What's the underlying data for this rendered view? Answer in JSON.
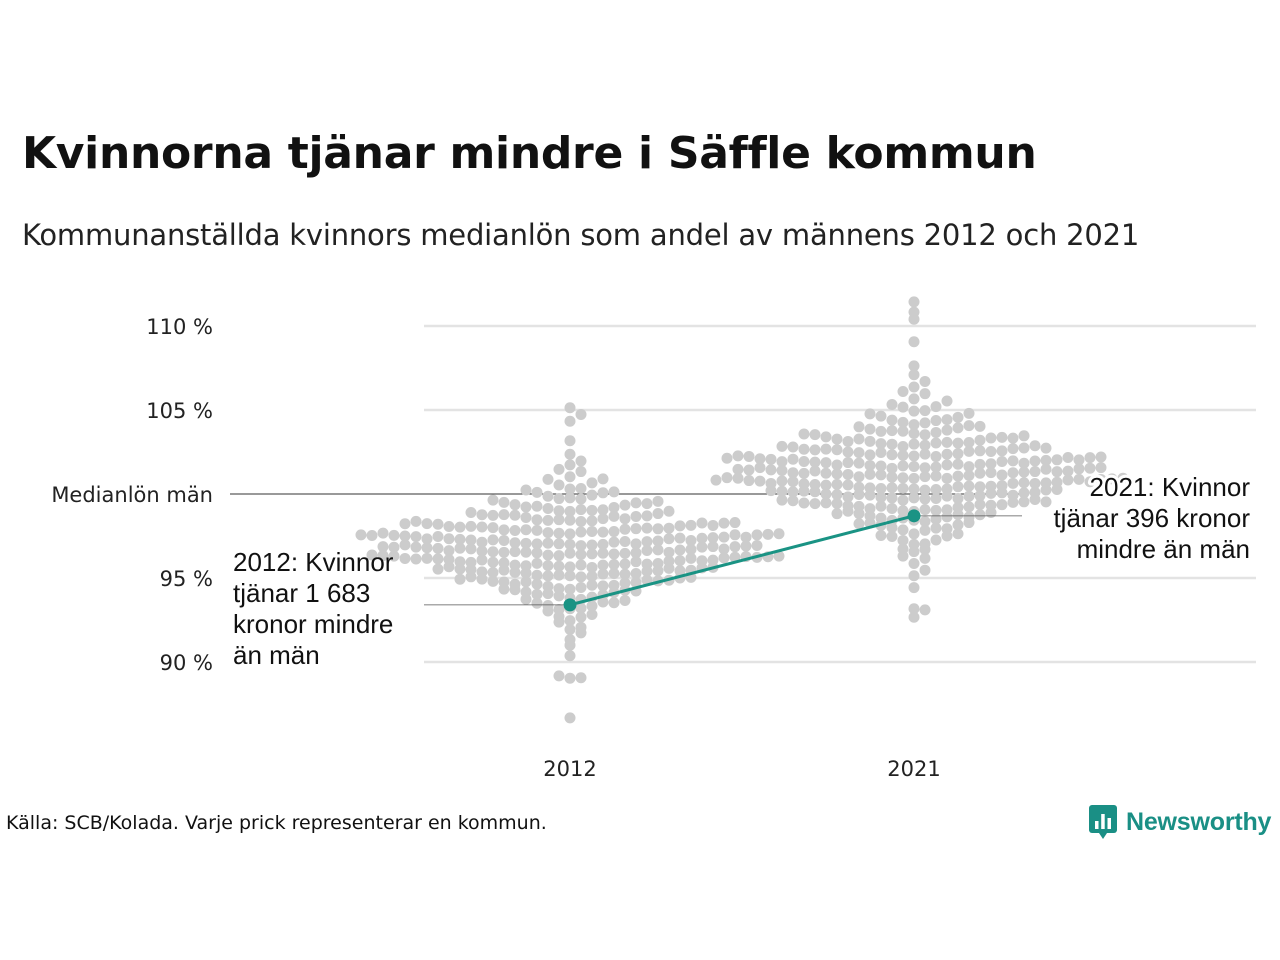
{
  "title": "Kvinnorna tjänar mindre i Säffle kommun",
  "subtitle": "Kommunanställda kvinnors medianlön som andel av männens 2012 och 2021",
  "source": "Källa: SCB/Kolada. Varje prick representerar en kommun.",
  "brand": {
    "name": "Newsworthy",
    "icon": "bar-chart-speech-bubble-icon",
    "color": "#1a8f85"
  },
  "colors": {
    "dots": "#cccccc",
    "highlight": "#1a9384",
    "grid": "#e3e3e3",
    "reference": "#333333"
  },
  "chart_data": {
    "type": "scatter",
    "subtype": "beeswarm",
    "categories": [
      "2012",
      "2021"
    ],
    "y_unit": "%",
    "ylim": [
      86,
      111.5
    ],
    "y_ticks": [
      {
        "value": 90,
        "label": "90 %"
      },
      {
        "value": 95,
        "label": "95 %"
      },
      {
        "value": 100,
        "label": "Medianlön män"
      },
      {
        "value": 105,
        "label": "105 %"
      },
      {
        "value": 110,
        "label": "110 %"
      }
    ],
    "reference_line": {
      "value": 100,
      "label": "Medianlön män"
    },
    "grid": true,
    "series": [
      {
        "highlight": "Säffle",
        "values": [
          93.4,
          98.7
        ],
        "annotations": [
          {
            "category": "2012",
            "lines": [
              "2012: Kvinnor",
              "tjänar 1 683",
              "kronor mindre",
              "än män"
            ]
          },
          {
            "category": "2021",
            "lines": [
              "2021: Kvinnor",
              "tjänar 396 kronor",
              "mindre än män"
            ]
          }
        ]
      }
    ],
    "distributions": [
      {
        "category": "2012",
        "n": 290,
        "mean": 96.7,
        "sd": 2.2,
        "extremes": [
          86.6,
          89.1,
          89.1,
          104.7,
          105.1
        ]
      },
      {
        "category": "2021",
        "n": 290,
        "mean": 101.1,
        "sd": 2.3,
        "extremes": [
          92.7,
          93.1,
          110.4,
          110.9,
          111.4
        ]
      }
    ]
  }
}
